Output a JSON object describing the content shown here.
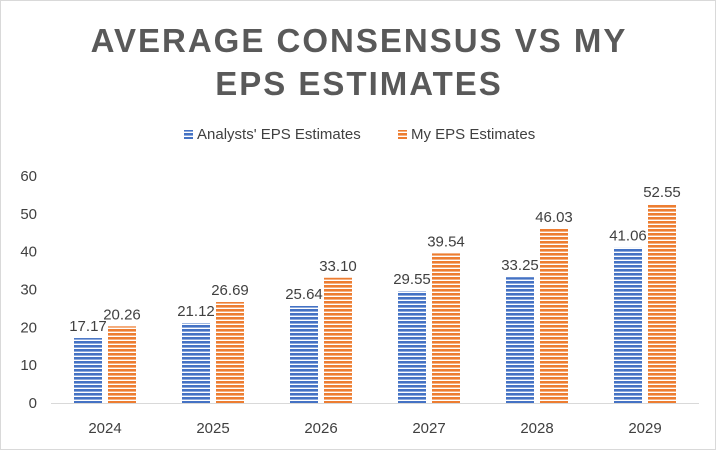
{
  "chart_data": {
    "type": "bar",
    "title_lines": [
      "AVERAGE CONSENSUS VS MY",
      "EPS ESTIMATES"
    ],
    "categories": [
      "2024",
      "2025",
      "2026",
      "2027",
      "2028",
      "2029"
    ],
    "series": [
      {
        "name": "Analysts' EPS Estimates",
        "color": "#4472c4",
        "values": [
          17.17,
          21.12,
          25.64,
          29.55,
          33.25,
          41.06
        ],
        "labels": [
          "17.17",
          "21.12",
          "25.64",
          "29.55",
          "33.25",
          "41.06"
        ]
      },
      {
        "name": "My EPS Estimates",
        "color": "#ed7d31",
        "values": [
          20.26,
          26.69,
          33.1,
          39.54,
          46.03,
          52.55
        ],
        "labels": [
          "20.26",
          "26.69",
          "33.10",
          "39.54",
          "46.03",
          "52.55"
        ]
      }
    ],
    "ylim": [
      0,
      60
    ],
    "yticks": [
      0,
      10,
      20,
      30,
      40,
      50,
      60
    ],
    "ytick_labels": [
      "0",
      "10",
      "20",
      "30",
      "40",
      "50",
      "60"
    ],
    "legend_position": "top-center",
    "grid": false,
    "xlabel": "",
    "ylabel": ""
  }
}
